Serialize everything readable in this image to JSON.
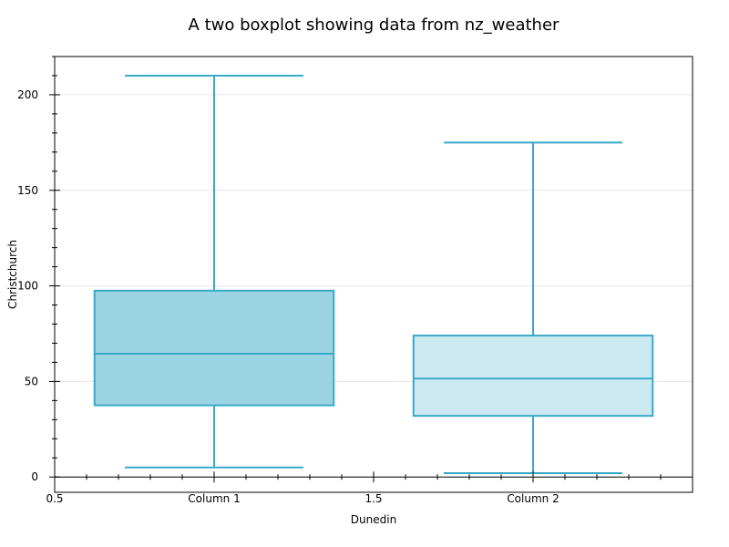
{
  "chart_data": {
    "type": "box",
    "title": "A two boxplot showing data from nz_weather",
    "xlabel": "Dunedin",
    "ylabel": "Christchurch",
    "xlim": [
      0.5,
      2.5
    ],
    "ylim": [
      -8,
      220
    ],
    "x_tick_labels": [
      {
        "value": 0.5,
        "label": "0.5"
      },
      {
        "value": 1.0,
        "label": "Column 1"
      },
      {
        "value": 1.5,
        "label": "1.5"
      },
      {
        "value": 2.0,
        "label": "Column 2"
      }
    ],
    "y_ticks": [
      0,
      50,
      100,
      150,
      200
    ],
    "y_tick_labels": [
      "0",
      "50",
      "100",
      "150",
      "200"
    ],
    "grid": "horizontal",
    "series": [
      {
        "category": "Column 1",
        "position": 1,
        "whisker_low": 5,
        "q1": 37.5,
        "median": 64.5,
        "q3": 97.5,
        "whisker_high": 210,
        "fill": "#9bd4e3",
        "stroke": "#3aa9c6"
      },
      {
        "category": "Column 2",
        "position": 2,
        "whisker_low": 2,
        "q1": 32,
        "median": 51.5,
        "q3": 74,
        "whisker_high": 175,
        "fill": "#cce9f2",
        "stroke": "#3aa9c6"
      }
    ]
  }
}
